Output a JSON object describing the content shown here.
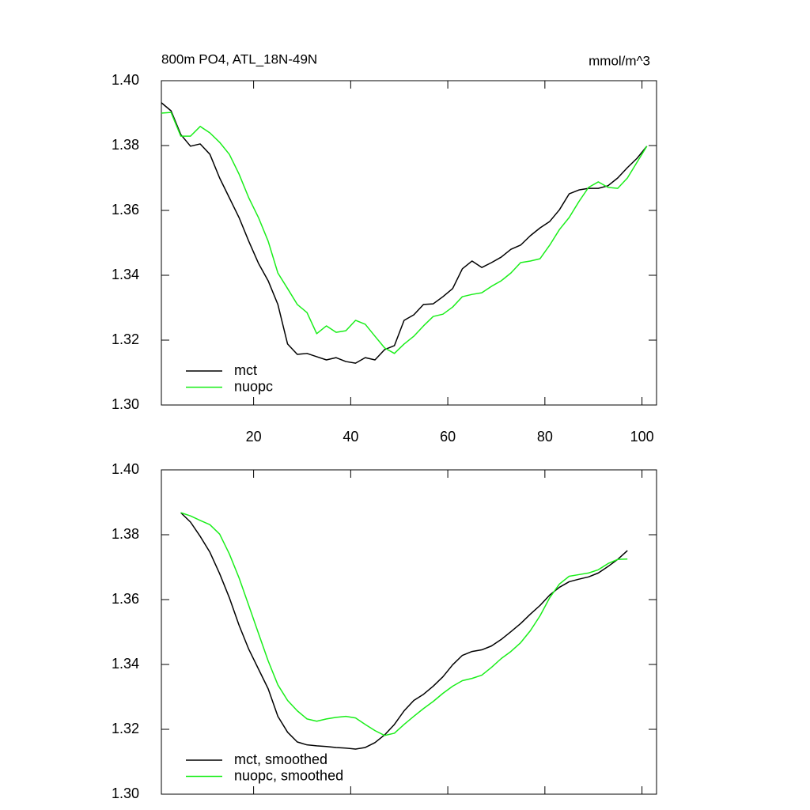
{
  "chart_data": [
    {
      "type": "line",
      "title": "800m PO4, ATL_18N-49N",
      "units": "mmol/m^3",
      "x": [
        1,
        3,
        5,
        7,
        9,
        11,
        13,
        15,
        17,
        19,
        21,
        23,
        25,
        27,
        29,
        31,
        33,
        35,
        37,
        39,
        41,
        43,
        45,
        47,
        49,
        51,
        53,
        55,
        57,
        59,
        61,
        63,
        65,
        67,
        69,
        71,
        73,
        75,
        77,
        79,
        81,
        83,
        85,
        87,
        89,
        91,
        93,
        95,
        97,
        99,
        101
      ],
      "series": [
        {
          "name": "mct",
          "color": "#000000",
          "values": [
            1.3932,
            1.3907,
            1.3834,
            1.3798,
            1.3805,
            1.3773,
            1.37,
            1.3639,
            1.3578,
            1.3505,
            1.3437,
            1.3383,
            1.331,
            1.3188,
            1.3156,
            1.3159,
            1.3149,
            1.3139,
            1.3146,
            1.3134,
            1.3129,
            1.3146,
            1.3139,
            1.3171,
            1.3183,
            1.3261,
            1.3278,
            1.331,
            1.3312,
            1.3334,
            1.3359,
            1.342,
            1.3444,
            1.3424,
            1.3439,
            1.3456,
            1.348,
            1.3493,
            1.3522,
            1.3546,
            1.3566,
            1.3602,
            1.3651,
            1.3663,
            1.3668,
            1.3668,
            1.3676,
            1.37,
            1.3732,
            1.3761,
            1.3798
          ]
        },
        {
          "name": "nuopc",
          "color": "#1aee1a",
          "values": [
            1.39,
            1.3902,
            1.3829,
            1.3829,
            1.3859,
            1.3839,
            1.381,
            1.3773,
            1.3712,
            1.3639,
            1.3578,
            1.3505,
            1.3407,
            1.3359,
            1.331,
            1.3285,
            1.322,
            1.3244,
            1.3224,
            1.3229,
            1.3261,
            1.3249,
            1.3212,
            1.3176,
            1.3159,
            1.3188,
            1.3212,
            1.3244,
            1.3273,
            1.328,
            1.3302,
            1.3334,
            1.3341,
            1.3346,
            1.3366,
            1.3383,
            1.3407,
            1.3439,
            1.3444,
            1.3451,
            1.3493,
            1.3541,
            1.3578,
            1.3627,
            1.3671,
            1.3688,
            1.3671,
            1.3668,
            1.37,
            1.3749,
            1.3798
          ]
        }
      ],
      "xlim": [
        1,
        103
      ],
      "xticks": [
        20,
        40,
        60,
        80,
        100
      ],
      "xtick_labels": true,
      "ylim": [
        1.3,
        1.4
      ],
      "yticks": [
        {
          "value": 1.3,
          "label": "1.30"
        },
        1.32,
        1.34,
        1.36,
        1.38,
        {
          "value": 1.4,
          "label": "1.40"
        }
      ],
      "legend": "lower left"
    },
    {
      "type": "line",
      "x": [
        5,
        7,
        9,
        11,
        13,
        15,
        17,
        19,
        21,
        23,
        25,
        27,
        29,
        31,
        33,
        35,
        37,
        39,
        41,
        43,
        45,
        47,
        49,
        51,
        53,
        55,
        57,
        59,
        61,
        63,
        65,
        67,
        69,
        71,
        73,
        75,
        77,
        79,
        81,
        83,
        85,
        87,
        89,
        91,
        93,
        95,
        97
      ],
      "series": [
        {
          "name": "mct, smoothed",
          "color": "#000000",
          "values": [
            1.3868,
            1.3839,
            1.3795,
            1.3746,
            1.368,
            1.3606,
            1.3521,
            1.3447,
            1.3386,
            1.3325,
            1.324,
            1.3191,
            1.3161,
            1.3152,
            1.3149,
            1.3147,
            1.3144,
            1.3142,
            1.3139,
            1.3144,
            1.3159,
            1.3183,
            1.3215,
            1.3257,
            1.3289,
            1.3308,
            1.3333,
            1.3362,
            1.3399,
            1.3428,
            1.344,
            1.3445,
            1.3457,
            1.3477,
            1.3501,
            1.3526,
            1.3555,
            1.3582,
            1.3614,
            1.3638,
            1.3655,
            1.3663,
            1.367,
            1.3682,
            1.3702,
            1.3724,
            1.3751
          ]
        },
        {
          "name": "nuopc, smoothed",
          "color": "#1aee1a",
          "values": [
            1.3868,
            1.3858,
            1.3844,
            1.3831,
            1.3802,
            1.3741,
            1.3667,
            1.3582,
            1.3496,
            1.3411,
            1.3337,
            1.3289,
            1.3257,
            1.3232,
            1.3225,
            1.3232,
            1.3237,
            1.324,
            1.3235,
            1.3215,
            1.3196,
            1.3181,
            1.3188,
            1.3215,
            1.324,
            1.3264,
            1.3286,
            1.3311,
            1.3333,
            1.335,
            1.3357,
            1.3367,
            1.3391,
            1.3418,
            1.344,
            1.3467,
            1.3504,
            1.355,
            1.3606,
            1.3648,
            1.3672,
            1.3677,
            1.3682,
            1.3692,
            1.3711,
            1.3724,
            1.3725
          ]
        }
      ],
      "xlim": [
        1,
        103
      ],
      "xticks": [
        20,
        40,
        60,
        80,
        100
      ],
      "xtick_labels": false,
      "ylim": [
        1.3,
        1.4
      ],
      "yticks": [
        {
          "value": 1.3,
          "label": "1.30"
        },
        1.32,
        1.34,
        1.36,
        1.38,
        {
          "value": 1.4,
          "label": "1.40"
        }
      ],
      "legend": "lower left"
    }
  ]
}
